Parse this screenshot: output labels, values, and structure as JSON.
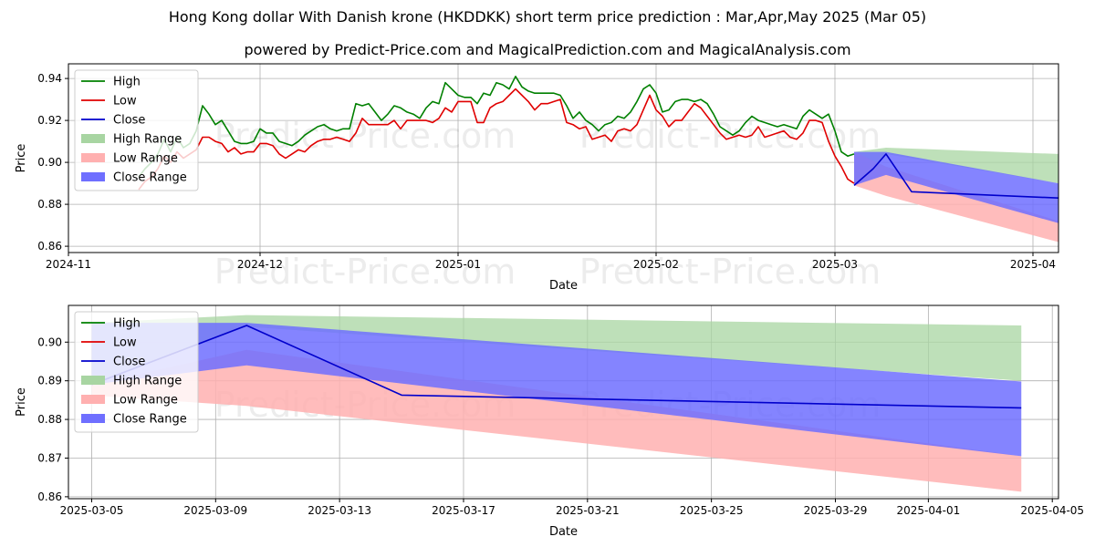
{
  "title": "Hong Kong dollar With Danish krone (HKDDKK) short term price prediction : Mar,Apr,May 2025 (Mar 05)",
  "subtitle": "powered by Predict-Price.com and MagicalPrediction.com and MagicalAnalysis.com",
  "watermark": "Predict-Price.com",
  "colors": {
    "high": "#008000",
    "low": "#e00000",
    "close": "#0000cc",
    "high_range": "#a8d5a2",
    "low_range": "#ffb0b0",
    "close_range": "#6f6fff"
  },
  "chart_data": [
    {
      "type": "line",
      "id": "top",
      "xlabel": "Date",
      "ylabel": "Price",
      "xlim": [
        0,
        155
      ],
      "ylim": [
        0.857,
        0.947
      ],
      "x_ticks": [
        {
          "x": 0,
          "label": "2024-11"
        },
        {
          "x": 30,
          "label": "2024-12"
        },
        {
          "x": 61,
          "label": "2025-01"
        },
        {
          "x": 92,
          "label": "2025-02"
        },
        {
          "x": 120,
          "label": "2025-03"
        },
        {
          "x": 151,
          "label": "2025-04"
        }
      ],
      "y_ticks": [
        0.86,
        0.88,
        0.9,
        0.92,
        0.94
      ],
      "y_tick_labels": [
        "0.86",
        "0.88",
        "0.90",
        "0.92",
        "0.94"
      ],
      "legend": [
        "High",
        "Low",
        "Close",
        "High Range",
        "Low Range",
        "Close Range"
      ],
      "series": [
        {
          "name": "High",
          "x": [
            11,
            12,
            13,
            14,
            15,
            16,
            17,
            18,
            19,
            20,
            21,
            22,
            23,
            24,
            25,
            26,
            27,
            28,
            29,
            30,
            31,
            32,
            33,
            34,
            35,
            36,
            37,
            38,
            39,
            40,
            41,
            42,
            43,
            44,
            45,
            46,
            47,
            48,
            49,
            50,
            51,
            52,
            53,
            54,
            55,
            56,
            57,
            58,
            59,
            60,
            61,
            62,
            63,
            64,
            65,
            66,
            67,
            68,
            69,
            70,
            71,
            72,
            73,
            74,
            75,
            76,
            77,
            78,
            79,
            80,
            81,
            82,
            83,
            84,
            85,
            86,
            87,
            88,
            89,
            90,
            91,
            92,
            93,
            94,
            95,
            96,
            97,
            98,
            99,
            100,
            101,
            102,
            103,
            104,
            105,
            106,
            107,
            108,
            109,
            110,
            111,
            112,
            113,
            114,
            115,
            116,
            117,
            118,
            119,
            120,
            121,
            122,
            123
          ],
          "values": [
            0.893,
            0.897,
            0.9,
            0.904,
            0.911,
            0.905,
            0.912,
            0.907,
            0.909,
            0.915,
            0.927,
            0.923,
            0.918,
            0.92,
            0.915,
            0.91,
            0.909,
            0.909,
            0.91,
            0.916,
            0.914,
            0.914,
            0.91,
            0.909,
            0.908,
            0.91,
            0.913,
            0.915,
            0.917,
            0.918,
            0.916,
            0.915,
            0.916,
            0.916,
            0.928,
            0.927,
            0.928,
            0.924,
            0.92,
            0.923,
            0.927,
            0.926,
            0.924,
            0.923,
            0.921,
            0.926,
            0.929,
            0.928,
            0.938,
            0.935,
            0.932,
            0.931,
            0.931,
            0.928,
            0.933,
            0.932,
            0.938,
            0.937,
            0.935,
            0.941,
            0.936,
            0.934,
            0.933,
            0.933,
            0.933,
            0.933,
            0.932,
            0.927,
            0.921,
            0.924,
            0.92,
            0.918,
            0.915,
            0.918,
            0.919,
            0.922,
            0.921,
            0.924,
            0.929,
            0.935,
            0.937,
            0.933,
            0.924,
            0.925,
            0.929,
            0.93,
            0.93,
            0.929,
            0.93,
            0.928,
            0.923,
            0.917,
            0.915,
            0.913,
            0.915,
            0.919,
            0.922,
            0.92,
            0.919,
            0.918,
            0.917,
            0.918,
            0.917,
            0.916,
            0.922,
            0.925,
            0.923,
            0.921,
            0.923,
            0.915,
            0.905,
            0.903,
            0.904
          ]
        },
        {
          "name": "Low",
          "x": [
            11,
            12,
            13,
            14,
            15,
            16,
            17,
            18,
            19,
            20,
            21,
            22,
            23,
            24,
            25,
            26,
            27,
            28,
            29,
            30,
            31,
            32,
            33,
            34,
            35,
            36,
            37,
            38,
            39,
            40,
            41,
            42,
            43,
            44,
            45,
            46,
            47,
            48,
            49,
            50,
            51,
            52,
            53,
            54,
            55,
            56,
            57,
            58,
            59,
            60,
            61,
            62,
            63,
            64,
            65,
            66,
            67,
            68,
            69,
            70,
            71,
            72,
            73,
            74,
            75,
            76,
            77,
            78,
            79,
            80,
            81,
            82,
            83,
            84,
            85,
            86,
            87,
            88,
            89,
            90,
            91,
            92,
            93,
            94,
            95,
            96,
            97,
            98,
            99,
            100,
            101,
            102,
            103,
            104,
            105,
            106,
            107,
            108,
            109,
            110,
            111,
            112,
            113,
            114,
            115,
            116,
            117,
            118,
            119,
            120,
            121,
            122,
            123
          ],
          "values": [
            0.887,
            0.891,
            0.893,
            0.897,
            0.903,
            0.9,
            0.905,
            0.902,
            0.904,
            0.906,
            0.912,
            0.912,
            0.91,
            0.909,
            0.905,
            0.907,
            0.904,
            0.905,
            0.905,
            0.909,
            0.909,
            0.908,
            0.904,
            0.902,
            0.904,
            0.906,
            0.905,
            0.908,
            0.91,
            0.911,
            0.911,
            0.912,
            0.911,
            0.91,
            0.914,
            0.921,
            0.918,
            0.918,
            0.918,
            0.918,
            0.92,
            0.916,
            0.92,
            0.92,
            0.92,
            0.92,
            0.919,
            0.921,
            0.926,
            0.924,
            0.929,
            0.929,
            0.929,
            0.919,
            0.919,
            0.926,
            0.928,
            0.929,
            0.932,
            0.935,
            0.932,
            0.929,
            0.925,
            0.928,
            0.928,
            0.929,
            0.93,
            0.919,
            0.918,
            0.916,
            0.917,
            0.911,
            0.912,
            0.913,
            0.91,
            0.915,
            0.916,
            0.915,
            0.918,
            0.925,
            0.932,
            0.925,
            0.922,
            0.917,
            0.92,
            0.92,
            0.924,
            0.928,
            0.926,
            0.922,
            0.918,
            0.914,
            0.911,
            0.912,
            0.913,
            0.912,
            0.913,
            0.917,
            0.912,
            0.913,
            0.914,
            0.915,
            0.912,
            0.911,
            0.914,
            0.92,
            0.92,
            0.919,
            0.91,
            0.903,
            0.898,
            0.892,
            0.89
          ]
        },
        {
          "name": "Close",
          "x": [
            123,
            126,
            128,
            132,
            155
          ],
          "values": [
            0.889,
            0.897,
            0.904,
            0.886,
            0.883
          ]
        }
      ],
      "ranges": [
        {
          "name": "High Range",
          "x": [
            123,
            128,
            155
          ],
          "upper": [
            0.905,
            0.907,
            0.904
          ],
          "lower": [
            0.889,
            0.904,
            0.89
          ]
        },
        {
          "name": "Low Range",
          "x": [
            123,
            128,
            155
          ],
          "upper": [
            0.905,
            0.898,
            0.872
          ],
          "lower": [
            0.889,
            0.884,
            0.862
          ]
        },
        {
          "name": "Close Range",
          "x": [
            123,
            128,
            155
          ],
          "upper": [
            0.905,
            0.905,
            0.89
          ],
          "lower": [
            0.889,
            0.894,
            0.871
          ]
        }
      ]
    },
    {
      "type": "line",
      "id": "bottom",
      "xlabel": "Date",
      "ylabel": "Price",
      "xlim": [
        -0.75,
        31.2
      ],
      "ylim": [
        0.8595,
        0.9095
      ],
      "x_ticks": [
        {
          "x": 0,
          "label": "2025-03-05"
        },
        {
          "x": 4,
          "label": "2025-03-09"
        },
        {
          "x": 8,
          "label": "2025-03-13"
        },
        {
          "x": 12,
          "label": "2025-03-17"
        },
        {
          "x": 16,
          "label": "2025-03-21"
        },
        {
          "x": 20,
          "label": "2025-03-25"
        },
        {
          "x": 24,
          "label": "2025-03-29"
        },
        {
          "x": 27,
          "label": "2025-04-01"
        },
        {
          "x": 31,
          "label": "2025-04-05"
        }
      ],
      "y_ticks": [
        0.86,
        0.87,
        0.88,
        0.89,
        0.9
      ],
      "y_tick_labels": [
        "0.86",
        "0.87",
        "0.88",
        "0.89",
        "0.90"
      ],
      "legend": [
        "High",
        "Low",
        "Close",
        "High Range",
        "Low Range",
        "Close Range"
      ],
      "series": [
        {
          "name": "Close",
          "x": [
            0,
            5,
            10,
            30
          ],
          "values": [
            0.889,
            0.9043,
            0.8863,
            0.883
          ]
        }
      ],
      "ranges": [
        {
          "name": "High Range",
          "x": [
            0,
            5,
            30
          ],
          "upper": [
            0.905,
            0.907,
            0.9043
          ],
          "lower": [
            0.889,
            0.904,
            0.89
          ]
        },
        {
          "name": "Low Range",
          "x": [
            0,
            5,
            30
          ],
          "upper": [
            0.889,
            0.898,
            0.8705
          ],
          "lower": [
            0.8862,
            0.8835,
            0.8613
          ]
        },
        {
          "name": "Close Range",
          "x": [
            0,
            5,
            30
          ],
          "upper": [
            0.905,
            0.905,
            0.8898
          ],
          "lower": [
            0.889,
            0.894,
            0.8705
          ]
        }
      ]
    }
  ]
}
